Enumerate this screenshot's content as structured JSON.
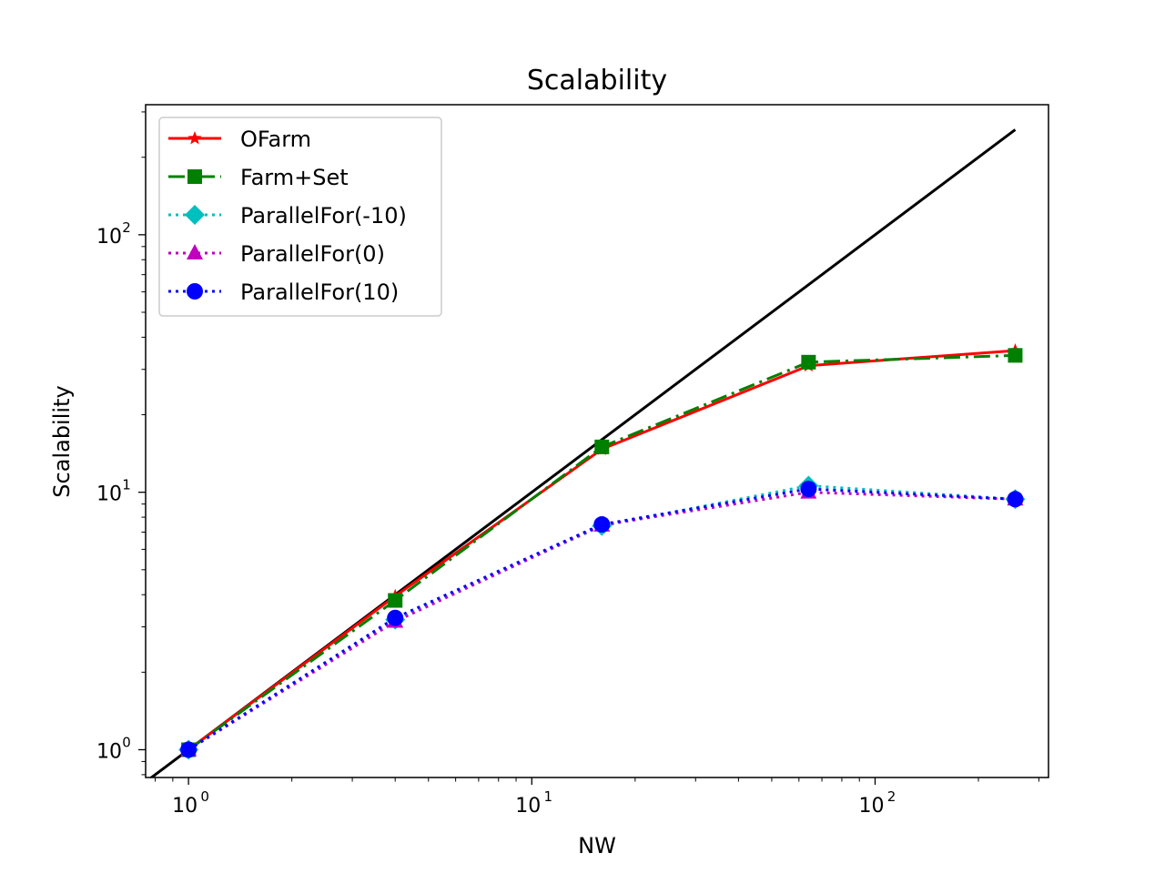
{
  "chart_data": {
    "type": "line",
    "title": "Scalability",
    "xlabel": "NW",
    "ylabel": "Scalability",
    "xscale": "log",
    "yscale": "log",
    "xlim": [
      0.75,
      320
    ],
    "ylim": [
      0.78,
      320
    ],
    "x_ticks": [
      {
        "value": 1,
        "base": "10",
        "exp": "0"
      },
      {
        "value": 10,
        "base": "10",
        "exp": "1"
      },
      {
        "value": 100,
        "base": "10",
        "exp": "2"
      }
    ],
    "y_ticks": [
      {
        "value": 1,
        "base": "10",
        "exp": "0"
      },
      {
        "value": 10,
        "base": "10",
        "exp": "1"
      },
      {
        "value": 100,
        "base": "10",
        "exp": "2"
      }
    ],
    "grid": false,
    "legend_position": "top-left",
    "ideal_line": {
      "x": [
        0.75,
        256
      ],
      "y": [
        0.75,
        256
      ],
      "color": "#000000"
    },
    "x": [
      1,
      4,
      16,
      64,
      256
    ],
    "series": [
      {
        "name": "OFarm",
        "values": [
          1.0,
          3.95,
          14.7,
          31.0,
          35.5
        ],
        "color": "#ff0000",
        "dash": "solid",
        "marker": "star"
      },
      {
        "name": "Farm+Set",
        "values": [
          1.0,
          3.8,
          15.0,
          32.0,
          34.0
        ],
        "color": "#008000",
        "dash": "dashdot",
        "marker": "square"
      },
      {
        "name": "ParallelFor(-10)",
        "values": [
          1.0,
          3.2,
          7.4,
          10.6,
          9.4
        ],
        "color": "#00bfbf",
        "dash": "dotted",
        "marker": "diamond"
      },
      {
        "name": "ParallelFor(0)",
        "values": [
          1.0,
          3.15,
          7.45,
          10.0,
          9.4
        ],
        "color": "#bf00bf",
        "dash": "dotted",
        "marker": "triangle"
      },
      {
        "name": "ParallelFor(10)",
        "values": [
          1.0,
          3.25,
          7.5,
          10.3,
          9.4
        ],
        "color": "#0000ff",
        "dash": "dotted",
        "marker": "circle"
      }
    ]
  }
}
